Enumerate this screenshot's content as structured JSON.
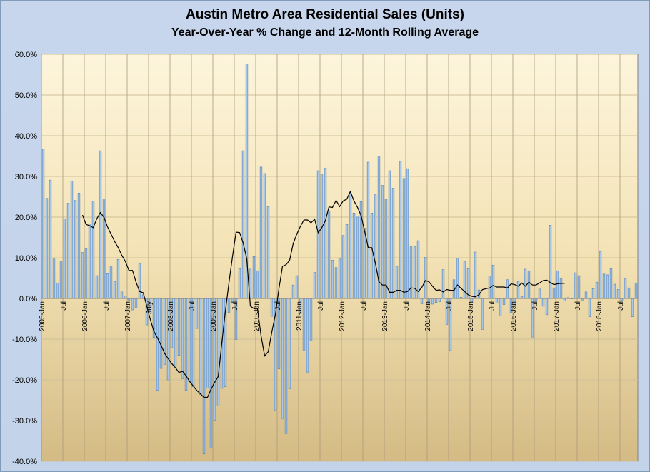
{
  "chart_data": {
    "type": "bar",
    "title": "Austin Metro Area Residential Sales (Units)",
    "subtitle": "Year-Over-Year % Change and 12-Month Rolling Average",
    "ylim": [
      -40,
      60
    ],
    "y_ticks": [
      "60.0%",
      "50.0%",
      "40.0%",
      "30.0%",
      "20.0%",
      "10.0%",
      "0.0%",
      "-10.0%",
      "-20.0%",
      "-30.0%",
      "-40.0%"
    ],
    "x_start": "2005-01",
    "x_tick_labels": [
      {
        "i": 0,
        "label": "2005-Jan"
      },
      {
        "i": 6,
        "label": "Jul"
      },
      {
        "i": 12,
        "label": "2006-Jan"
      },
      {
        "i": 18,
        "label": "Jul"
      },
      {
        "i": 24,
        "label": "2007-Jan"
      },
      {
        "i": 30,
        "label": "July"
      },
      {
        "i": 36,
        "label": "2008-Jan"
      },
      {
        "i": 42,
        "label": "Jul"
      },
      {
        "i": 48,
        "label": "2009-Jan"
      },
      {
        "i": 54,
        "label": "Jul"
      },
      {
        "i": 60,
        "label": "2010-Jan"
      },
      {
        "i": 66,
        "label": "Jul"
      },
      {
        "i": 72,
        "label": "2011-Jan"
      },
      {
        "i": 78,
        "label": "Jul"
      },
      {
        "i": 84,
        "label": "2012-Jan"
      },
      {
        "i": 90,
        "label": "Jul"
      },
      {
        "i": 96,
        "label": "2013-Jan"
      },
      {
        "i": 102,
        "label": "Jul"
      },
      {
        "i": 108,
        "label": "2014-Jan"
      },
      {
        "i": 114,
        "label": "Jul"
      },
      {
        "i": 120,
        "label": "2015-Jan"
      },
      {
        "i": 126,
        "label": "Jul"
      },
      {
        "i": 132,
        "label": "2016-Jan"
      },
      {
        "i": 138,
        "label": "Jul"
      },
      {
        "i": 144,
        "label": "2017-Jan"
      },
      {
        "i": 150,
        "label": "Jul"
      },
      {
        "i": 156,
        "label": "2018-Jan"
      },
      {
        "i": 162,
        "label": "Jul"
      }
    ],
    "series": [
      {
        "type": "bar",
        "color": "#4f81bd",
        "values": [
          36.7,
          24.6,
          29.1,
          9.7,
          3.8,
          9.2,
          19.6,
          23.4,
          28.9,
          24.1,
          25.9,
          11.3,
          12.3,
          18.1,
          23.9,
          5.6,
          36.3,
          24.5,
          6.1,
          8.0,
          4.2,
          9.6,
          1.6,
          0.6,
          -0.4,
          -2.8,
          -2.3,
          8.6,
          0.9,
          -6.5,
          -3.6,
          -9.6,
          -22.6,
          -17.2,
          -16.2,
          -20.0,
          -12.1,
          -16.6,
          -14.0,
          -19.7,
          -22.6,
          -20.5,
          -21.7,
          -7.4,
          -23.6,
          -38.2,
          -22.0,
          -36.8,
          -29.9,
          -26.4,
          -22.1,
          -21.7,
          -3.5,
          -1.2,
          -10.1,
          7.3,
          36.3,
          57.6,
          7.2,
          10.3,
          6.8,
          32.3,
          30.7,
          22.6,
          -4.4,
          -27.4,
          -17.3,
          -29.5,
          -33.2,
          -22.2,
          3.3,
          5.6,
          -3.8,
          -12.7,
          -18.1,
          -10.4,
          6.4,
          31.4,
          30.4,
          32.0,
          21.5,
          9.4,
          7.6,
          9.7,
          15.5,
          18.2,
          25.9,
          21.0,
          20.0,
          23.8,
          17.3,
          33.5,
          21.0,
          25.5,
          34.8,
          27.8,
          24.4,
          31.4,
          27.1,
          7.9,
          33.7,
          29.5,
          31.9,
          12.7,
          12.7,
          14.2,
          -1.3,
          10.1,
          -1.4,
          -1.4,
          -1.0,
          -0.8,
          7.1,
          -6.4,
          -12.8,
          4.6,
          9.9,
          0.3,
          9.0,
          7.3,
          -1.1,
          11.4,
          2.1,
          -7.6,
          0.1,
          5.5,
          8.2,
          -1.1,
          -4.3,
          -1.5,
          4.6,
          -3.5,
          -1.6,
          4.2,
          0.5,
          7.2,
          6.8,
          -9.5,
          -0.7,
          2.3,
          -1.9,
          -4.0,
          18.0,
          2.6,
          6.8,
          4.9,
          -0.6,
          0.2,
          -0.1,
          6.3,
          5.6,
          -0.4,
          1.6,
          -4.5,
          2.4,
          4.0,
          11.5,
          6.0,
          5.8,
          7.3,
          3.5,
          2.2,
          -0.5,
          4.8,
          2.6,
          -4.5,
          3.8
        ]
      },
      {
        "type": "line",
        "color": "#000000",
        "x_offset": 11,
        "values": [
          20.5,
          18.2,
          17.9,
          17.4,
          19.6,
          21.1,
          20.0,
          17.6,
          15.8,
          14.0,
          12.5,
          10.6,
          9.1,
          6.9,
          6.9,
          4.0,
          1.7,
          1.4,
          -1.9,
          -5.2,
          -8.1,
          -9.7,
          -11.5,
          -13.5,
          -14.8,
          -16.0,
          -17.0,
          -18.2,
          -17.9,
          -19.0,
          -20.4,
          -21.5,
          -22.6,
          -23.4,
          -24.3,
          -24.3,
          -22.3,
          -20.6,
          -19.2,
          -11.0,
          -3.2,
          3.8,
          10.3,
          16.3,
          16.2,
          13.6,
          9.7,
          -1.9,
          -2.5,
          -2.5,
          -9.2,
          -14.1,
          -13.1,
          -8.3,
          -4.0,
          2.4,
          7.9,
          8.3,
          9.4,
          13.5,
          15.8,
          17.7,
          19.3,
          19.3,
          18.6,
          19.5,
          16.2,
          17.4,
          19.1,
          22.5,
          22.4,
          24.1,
          22.6,
          24.0,
          24.4,
          26.3,
          24.0,
          22.4,
          20.4,
          16.5,
          12.5,
          12.5,
          8.7,
          4.1,
          3.3,
          3.3,
          1.5,
          1.5,
          2.0,
          2.0,
          1.5,
          1.7,
          2.6,
          2.5,
          1.7,
          2.7,
          4.4,
          4.1,
          3.0,
          2.0,
          2.1,
          1.6,
          2.2,
          2.0,
          2.0,
          3.3,
          2.5,
          1.7,
          0.9,
          0.5,
          0.4,
          0.9,
          2.2,
          2.4,
          2.6,
          3.2,
          2.8,
          2.8,
          2.8,
          2.6,
          3.6,
          3.4,
          3.0,
          3.8,
          3.0,
          4.0,
          3.3,
          3.3,
          3.8,
          4.4,
          4.5,
          3.9,
          3.4,
          3.6,
          3.7,
          3.7
        ]
      }
    ]
  }
}
